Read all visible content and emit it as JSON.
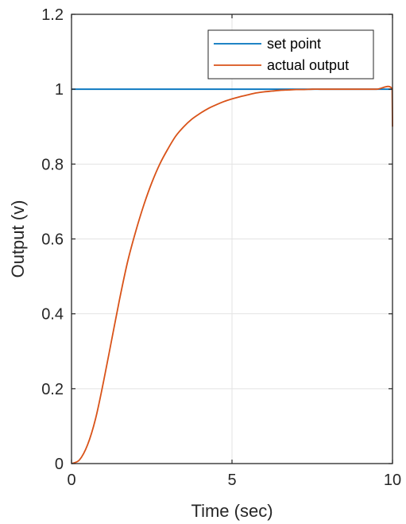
{
  "chart_data": {
    "type": "line",
    "xlabel": "Time (sec)",
    "ylabel": "Output (v)",
    "xlim": [
      0,
      10
    ],
    "ylim": [
      0,
      1.2
    ],
    "xticks": [
      0,
      5,
      10
    ],
    "xtick_labels": [
      "0",
      "5",
      "10"
    ],
    "yticks": [
      0,
      0.2,
      0.4,
      0.6,
      0.8,
      1,
      1.2
    ],
    "ytick_labels": [
      "0",
      "0.2",
      "0.4",
      "0.6",
      "0.8",
      "1",
      "1.2"
    ],
    "grid": true,
    "legend_position": "top-right",
    "series": [
      {
        "name": "set point",
        "color": "#0072BD",
        "x": [
          0,
          10
        ],
        "y": [
          1,
          1
        ]
      },
      {
        "name": "actual output",
        "color": "#D95319",
        "x": [
          0,
          0.25,
          0.5,
          0.75,
          1,
          1.25,
          1.5,
          1.75,
          2,
          2.25,
          2.5,
          2.75,
          3,
          3.25,
          3.5,
          3.75,
          4,
          4.25,
          4.5,
          4.75,
          5,
          5.25,
          5.5,
          5.75,
          6,
          6.25,
          6.5,
          6.75,
          7,
          7.25,
          7.5,
          7.75,
          8,
          8.5,
          9,
          9.5,
          9.99,
          10
        ],
        "y": [
          0,
          0.01,
          0.05,
          0.12,
          0.22,
          0.33,
          0.44,
          0.54,
          0.62,
          0.69,
          0.75,
          0.8,
          0.84,
          0.875,
          0.9,
          0.92,
          0.935,
          0.948,
          0.958,
          0.967,
          0.974,
          0.98,
          0.985,
          0.99,
          0.993,
          0.995,
          0.997,
          0.998,
          0.999,
          0.999,
          1,
          1,
          1,
          1,
          1,
          1,
          1,
          0.9
        ]
      }
    ]
  }
}
